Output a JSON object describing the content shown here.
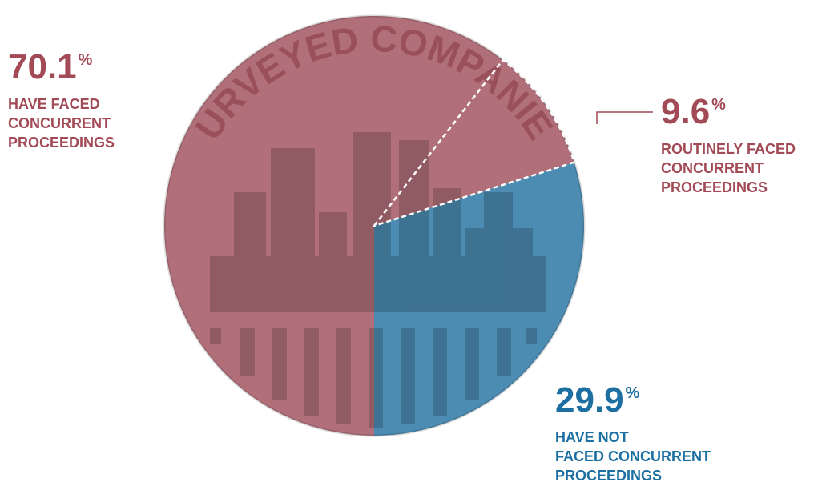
{
  "chart_data": {
    "type": "pie",
    "title": "SURVEYED COMPANIES",
    "unit": "%",
    "categories": [
      "HAVE FACED\nCONCURRENT\nPROCEEDINGS",
      "HAVE NOT\nFACED CONCURRENT\nPROCEEDINGS"
    ],
    "values": [
      70.1,
      29.9
    ],
    "colors": [
      "#a8606a",
      "#3a7faa"
    ],
    "inset": {
      "category": "ROUTINELY FACED\nCONCURRENT\nPROCEEDINGS",
      "value": 9.6
    }
  }
}
